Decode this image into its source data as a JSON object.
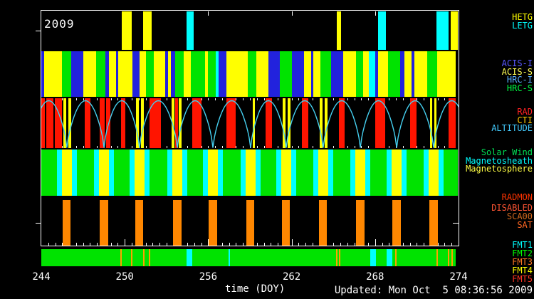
{
  "year": "2009",
  "footer": {
    "updated": "Updated: Mon Oct  5 08:36:56 2009"
  },
  "colors": {
    "yellow": "#ffff00",
    "green": "#00e300",
    "blue": "#2222dd",
    "cyan": "#00ffff",
    "red": "#ff1400",
    "orange": "#ff8700",
    "fmt_orange": "#ffa000",
    "curve": "#45d0f0",
    "frame": "#ffffff"
  },
  "right_labels": [
    {
      "text": "HETG",
      "color": "#ffff00"
    },
    {
      "text": "LETG",
      "color": "#00ffff"
    },
    {
      "text": "ACIS-I",
      "color": "#5858ff"
    },
    {
      "text": "ACIS-S",
      "color": "#ffff55"
    },
    {
      "text": "HRC-I",
      "color": "#58b0ff"
    },
    {
      "text": "HRC-S",
      "color": "#00ff44"
    },
    {
      "text": "RAD",
      "color": "#ff2222"
    },
    {
      "text": "CTI",
      "color": "#ffc800"
    },
    {
      "text": "ALTITUDE",
      "color": "#44ccff"
    },
    {
      "text": "Solar Wind",
      "color": "#00e055"
    },
    {
      "text": "Magnetosheath",
      "color": "#00ffff"
    },
    {
      "text": "Magnetosphere",
      "color": "#ffff44"
    },
    {
      "text": "RADMON",
      "color": "#ff3300"
    },
    {
      "text": "DISABLED",
      "color": "#ff5533"
    },
    {
      "text": "SCA00",
      "color": "#d2691e"
    },
    {
      "text": "SAT",
      "color": "#ff6622"
    },
    {
      "text": "FMT1",
      "color": "#00ffff"
    },
    {
      "text": "FMT2",
      "color": "#00ff00"
    },
    {
      "text": "FMT3",
      "color": "#ff7722"
    },
    {
      "text": "FMT4",
      "color": "#ffff00"
    },
    {
      "text": "FMT5",
      "color": "#ff3322"
    }
  ],
  "chart_data": {
    "type": "timeline",
    "x_axis": {
      "label": "time (DOY)",
      "range": [
        244,
        274
      ],
      "major_ticks": [
        244,
        250,
        256,
        262,
        268,
        274
      ],
      "minor_step": 0.5,
      "units": "day of year, 2009"
    },
    "perigee_times": [
      243.23,
      245.84,
      248.51,
      251.06,
      253.78,
      256.34,
      259.05,
      261.61,
      264.27,
      266.94,
      269.55,
      272.21,
      274.82
    ],
    "tracks": [
      {
        "name": "gratings",
        "series": [
          {
            "name": "HETG",
            "color_key": "yellow",
            "intervals": [
              [
                249.78,
                250.5
              ],
              [
                251.32,
                251.93
              ],
              [
                265.25,
                265.55
              ],
              [
                273.44,
                273.95
              ]
            ]
          },
          {
            "name": "LETG",
            "color_key": "cyan",
            "intervals": [
              [
                254.44,
                254.96
              ],
              [
                268.21,
                268.78
              ],
              [
                272.41,
                273.28
              ]
            ]
          }
        ]
      },
      {
        "name": "instruments",
        "legend": {
          "Y": "ACIS-S",
          "B": "ACIS-I",
          "C": "HRC-I",
          "G": "HRC-S"
        },
        "segments": [
          [
            244.0,
            244.2,
            "B"
          ],
          [
            244.2,
            245.48,
            "Y"
          ],
          [
            245.48,
            246.15,
            "G"
          ],
          [
            246.15,
            247.02,
            "B"
          ],
          [
            247.02,
            247.94,
            "Y"
          ],
          [
            247.94,
            248.61,
            "G"
          ],
          [
            248.61,
            248.86,
            "B"
          ],
          [
            248.86,
            249.38,
            "Y"
          ],
          [
            249.38,
            249.53,
            "B"
          ],
          [
            249.53,
            250.55,
            "Y"
          ],
          [
            250.55,
            251.06,
            "B"
          ],
          [
            251.06,
            251.53,
            "Y"
          ],
          [
            251.53,
            252.09,
            "G"
          ],
          [
            252.09,
            252.91,
            "Y"
          ],
          [
            252.91,
            253.11,
            "B"
          ],
          [
            253.11,
            253.32,
            "Y"
          ],
          [
            253.32,
            253.62,
            "B"
          ],
          [
            253.62,
            254.24,
            "G"
          ],
          [
            254.24,
            254.75,
            "Y"
          ],
          [
            254.75,
            255.78,
            "G"
          ],
          [
            255.78,
            255.98,
            "Y"
          ],
          [
            255.98,
            256.54,
            "G"
          ],
          [
            256.54,
            256.75,
            "C"
          ],
          [
            256.75,
            257.31,
            "B"
          ],
          [
            257.31,
            258.85,
            "Y"
          ],
          [
            258.85,
            259.46,
            "G"
          ],
          [
            259.46,
            260.33,
            "Y"
          ],
          [
            260.33,
            261.15,
            "B"
          ],
          [
            261.15,
            262.02,
            "G"
          ],
          [
            262.02,
            262.89,
            "B"
          ],
          [
            262.89,
            263.4,
            "Y"
          ],
          [
            263.4,
            263.56,
            "B"
          ],
          [
            263.56,
            264.07,
            "Y"
          ],
          [
            264.07,
            264.84,
            "G"
          ],
          [
            264.84,
            265.71,
            "B"
          ],
          [
            265.71,
            266.63,
            "Y"
          ],
          [
            266.63,
            267.14,
            "G"
          ],
          [
            267.14,
            267.55,
            "Y"
          ],
          [
            267.55,
            268.01,
            "C"
          ],
          [
            268.01,
            268.22,
            "B"
          ],
          [
            268.22,
            268.93,
            "Y"
          ],
          [
            268.93,
            269.8,
            "G"
          ],
          [
            269.8,
            270.11,
            "B"
          ],
          [
            270.11,
            270.62,
            "Y"
          ],
          [
            270.62,
            270.83,
            "B"
          ],
          [
            270.83,
            271.75,
            "Y"
          ],
          [
            271.75,
            272.46,
            "G"
          ],
          [
            272.46,
            273.79,
            "Y"
          ]
        ]
      },
      {
        "name": "radiation",
        "rad_intervals": [
          [
            244.0,
            244.26
          ],
          [
            244.36,
            244.87
          ],
          [
            244.97,
            245.48
          ],
          [
            247.12,
            247.53
          ],
          [
            248.2,
            248.56
          ],
          [
            248.66,
            248.97
          ],
          [
            249.73,
            250.04
          ],
          [
            251.78,
            252.6
          ],
          [
            253.62,
            253.83
          ],
          [
            254.85,
            255.52
          ],
          [
            257.31,
            257.98
          ],
          [
            260.13,
            260.59
          ],
          [
            262.74,
            263.2
          ],
          [
            265.4,
            265.81
          ],
          [
            268.01,
            268.73
          ],
          [
            270.52,
            270.98
          ],
          [
            273.28,
            273.79
          ]
        ],
        "cti_intervals": [
          [
            245.59,
            245.79
          ],
          [
            245.95,
            246.15
          ],
          [
            250.81,
            251.01
          ],
          [
            251.17,
            251.37
          ],
          [
            253.37,
            253.57
          ],
          [
            253.88,
            254.09
          ],
          [
            259.21,
            259.36
          ],
          [
            261.36,
            261.56
          ],
          [
            261.71,
            261.92
          ],
          [
            264.02,
            264.22
          ],
          [
            264.38,
            264.58
          ],
          [
            271.95,
            272.1
          ],
          [
            272.26,
            272.41
          ]
        ],
        "altitude": "arcs peaking between successive perigee_times"
      },
      {
        "name": "regions",
        "legend": {
          "green": "Solar Wind",
          "cyan": "Magnetosheath",
          "yellow": "Magnetosphere"
        },
        "magnetosphere_halfwidth_days": 0.36,
        "magnetosheath_width_days": 0.36,
        "pattern": "yellow centered on each perigee, cyan on both sides, green elsewhere"
      },
      {
        "name": "radmon",
        "bar_halfwidth_days": 0.3,
        "bars_at_perigees": true
      },
      {
        "name": "formats",
        "background_series": "FMT2",
        "orange_line_times": [
          249.73,
          250.5,
          251.37,
          251.78,
          265.25,
          265.45,
          269.49,
          272.46,
          273.28,
          273.54
        ],
        "cyan_intervals": [
          [
            254.44,
            254.85
          ],
          [
            267.65,
            268.06
          ],
          [
            268.83,
            269.24
          ]
        ],
        "cyan_line_times": [
          257.52
        ]
      }
    ]
  }
}
